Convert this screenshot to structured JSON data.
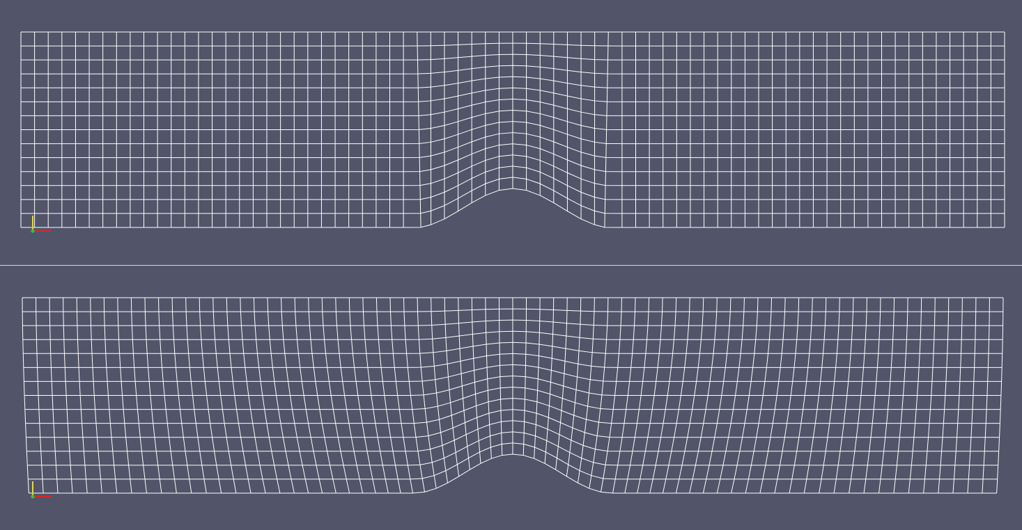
{
  "app": {
    "background_color": "#525469",
    "divider_color": "#d8d8d8"
  },
  "mesh_style": {
    "line_color": "#ffffff"
  },
  "viewports": [
    {
      "id": "top",
      "mesh": {
        "type": "structured-quad-mesh",
        "columns": 72,
        "rows": 14,
        "bump_shape": "cosine-hill",
        "smoothing": "local"
      },
      "axes_triad": {
        "x_axis_color": "#d42a2a",
        "y_axis_color": "#e6d83a",
        "z_axis_color": "#2ec24a"
      }
    },
    {
      "id": "bottom",
      "mesh": {
        "type": "structured-quad-mesh",
        "columns": 72,
        "rows": 14,
        "bump_shape": "cosine-hill",
        "smoothing": "global"
      },
      "axes_triad": {
        "x_axis_color": "#d42a2a",
        "y_axis_color": "#e6d83a",
        "z_axis_color": "#2ec24a"
      }
    }
  ]
}
